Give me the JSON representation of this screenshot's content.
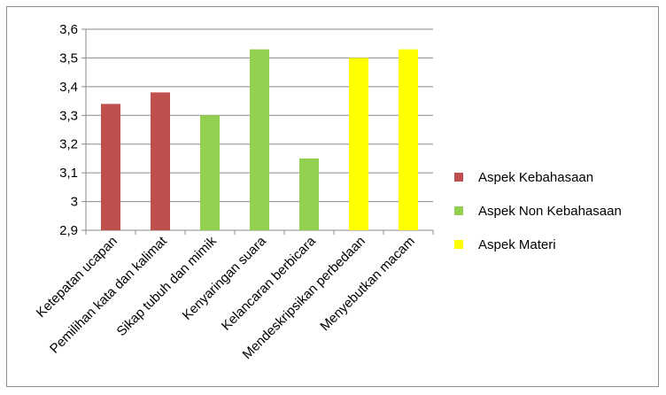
{
  "chart_data": {
    "type": "bar",
    "categories": [
      "Ketepatan ucapan",
      "Pemilihan kata dan kalimat",
      "Sikap tubuh dan mimik",
      "Kenyaringan suara",
      "Kelancaran berbicara",
      "Mendeskripsikan perbedaan",
      "Menyebutkan macam"
    ],
    "values": [
      3.34,
      3.38,
      3.3,
      3.53,
      3.15,
      3.5,
      3.53
    ],
    "bar_groups": [
      0,
      0,
      1,
      1,
      1,
      2,
      2
    ],
    "ylim": [
      2.9,
      3.6
    ],
    "yticks": [
      "2,9",
      "3",
      "3,1",
      "3,2",
      "3,3",
      "3,4",
      "3,5",
      "3,6"
    ],
    "grid": true,
    "legend_position": "right",
    "series": [
      {
        "name": "Aspek Kebahasaan",
        "color": "#c0504d"
      },
      {
        "name": "Aspek Non Kebahasaan",
        "color": "#92d050"
      },
      {
        "name": "Aspek Materi",
        "color": "#ffff00"
      }
    ]
  }
}
